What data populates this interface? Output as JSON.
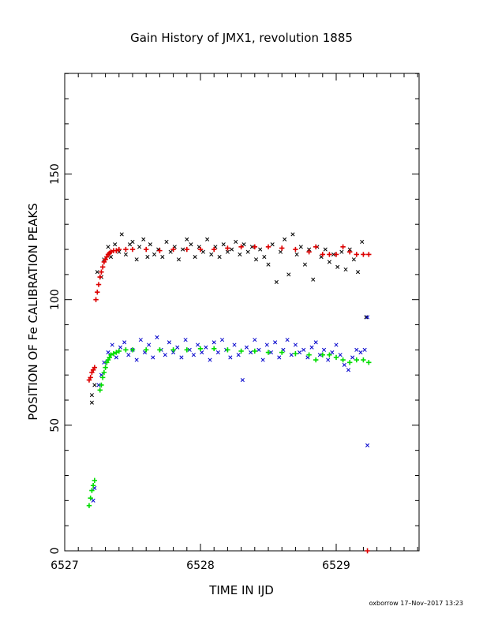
{
  "chart_data": {
    "type": "scatter",
    "title": "Gain History of JMX1, revolution 1885",
    "xlabel": "TIME IN IJD",
    "ylabel": "POSITION OF Fe CALIBRATION PEAKS",
    "xlim": [
      6527.0,
      6529.6
    ],
    "ylim": [
      0,
      190
    ],
    "xticks": [
      6527,
      6528,
      6529
    ],
    "xtick_labels": [
      "6527",
      "6528",
      "6529"
    ],
    "yticks": [
      0,
      50,
      100,
      150
    ],
    "ytick_labels": [
      "0",
      "50",
      "100",
      "150"
    ],
    "grid": false,
    "footer": "oxborrow 17–Nov–2017 13:23",
    "series": [
      {
        "marker": "x",
        "color": "#000000",
        "x": [
          6527.2,
          6527.2,
          6527.22,
          6527.24,
          6527.27,
          6527.29,
          6527.32,
          6527.34,
          6527.37,
          6527.4,
          6527.42,
          6527.45,
          6527.48,
          6527.5,
          6527.53,
          6527.55,
          6527.58,
          6527.61,
          6527.63,
          6527.66,
          6527.69,
          6527.72,
          6527.75,
          6527.78,
          6527.81,
          6527.84,
          6527.87,
          6527.9,
          6527.93,
          6527.96,
          6527.99,
          6528.02,
          6528.05,
          6528.08,
          6528.11,
          6528.14,
          6528.17,
          6528.2,
          6528.23,
          6528.26,
          6528.29,
          6528.32,
          6528.35,
          6528.38,
          6528.41,
          6528.44,
          6528.47,
          6528.5,
          6528.53,
          6528.56,
          6528.59,
          6528.62,
          6528.65,
          6528.68,
          6528.71,
          6528.74,
          6528.77,
          6528.8,
          6528.83,
          6528.86,
          6528.89,
          6528.92,
          6528.95,
          6528.98,
          6529.01,
          6529.04,
          6529.07,
          6529.1,
          6529.13,
          6529.16,
          6529.19,
          6529.22
        ],
        "y": [
          59,
          62,
          66,
          111,
          109,
          116,
          121,
          117,
          122,
          119,
          126,
          118,
          122,
          123,
          116,
          121,
          124,
          117,
          122,
          118,
          120,
          117,
          123,
          119,
          121,
          116,
          120,
          124,
          122,
          117,
          121,
          119,
          124,
          118,
          121,
          117,
          122,
          119,
          120,
          123,
          118,
          122,
          119,
          121,
          116,
          120,
          117,
          114,
          122,
          107,
          119,
          124,
          110,
          126,
          118,
          121,
          114,
          120,
          108,
          121,
          117,
          120,
          115,
          118,
          113,
          119,
          112,
          120,
          116,
          111,
          123,
          93
        ]
      },
      {
        "marker": "+",
        "color": "#dd0000",
        "x": [
          6527.18,
          6527.19,
          6527.2,
          6527.21,
          6527.22,
          6527.23,
          6527.24,
          6527.25,
          6527.26,
          6527.27,
          6527.28,
          6527.29,
          6527.3,
          6527.31,
          6527.32,
          6527.33,
          6527.34,
          6527.36,
          6527.38,
          6527.4,
          6527.45,
          6527.5,
          6527.6,
          6527.7,
          6527.8,
          6527.9,
          6528.0,
          6528.1,
          6528.2,
          6528.3,
          6528.4,
          6528.5,
          6528.6,
          6528.7,
          6528.8,
          6528.85,
          6528.9,
          6528.95,
          6529.0,
          6529.05,
          6529.1,
          6529.15,
          6529.2,
          6529.24,
          6529.23
        ],
        "y": [
          68,
          69,
          71,
          72,
          73,
          100,
          103,
          106,
          109,
          111,
          113,
          115,
          116,
          117,
          118,
          118.5,
          119,
          119.5,
          119.5,
          120,
          120,
          120,
          120,
          119.5,
          120,
          120,
          120,
          120,
          120.5,
          121,
          121,
          121,
          120.5,
          120,
          119,
          121,
          118,
          118,
          118,
          121,
          119,
          118,
          118,
          118,
          0
        ]
      },
      {
        "marker": "x",
        "color": "#0000cc",
        "x": [
          6527.21,
          6527.22,
          6527.25,
          6527.27,
          6527.29,
          6527.32,
          6527.35,
          6527.38,
          6527.41,
          6527.44,
          6527.47,
          6527.5,
          6527.53,
          6527.56,
          6527.59,
          6527.62,
          6527.65,
          6527.68,
          6527.71,
          6527.74,
          6527.77,
          6527.8,
          6527.83,
          6527.86,
          6527.89,
          6527.92,
          6527.95,
          6527.98,
          6528.01,
          6528.04,
          6528.07,
          6528.1,
          6528.13,
          6528.16,
          6528.19,
          6528.22,
          6528.25,
          6528.28,
          6528.31,
          6528.34,
          6528.37,
          6528.4,
          6528.43,
          6528.46,
          6528.49,
          6528.52,
          6528.55,
          6528.58,
          6528.61,
          6528.64,
          6528.67,
          6528.7,
          6528.73,
          6528.76,
          6528.79,
          6528.82,
          6528.85,
          6528.88,
          6528.91,
          6528.94,
          6528.97,
          6529.0,
          6529.03,
          6529.06,
          6529.09,
          6529.12,
          6529.15,
          6529.18,
          6529.21,
          6529.23,
          6529.23
        ],
        "y": [
          20,
          25,
          66,
          70,
          75,
          79,
          82,
          77,
          81,
          83,
          78,
          80,
          76,
          84,
          79,
          82,
          77,
          85,
          80,
          78,
          83,
          79,
          81,
          77,
          84,
          80,
          78,
          82,
          79,
          81,
          76,
          83,
          79,
          84,
          80,
          77,
          82,
          78,
          68,
          81,
          79,
          84,
          80,
          76,
          82,
          79,
          83,
          77,
          80,
          84,
          78,
          82,
          79,
          80,
          77,
          81,
          83,
          78,
          80,
          76,
          79,
          82,
          78,
          74,
          72,
          77,
          80,
          79,
          80,
          42,
          93
        ]
      },
      {
        "marker": "+",
        "color": "#00dd00",
        "x": [
          6527.18,
          6527.19,
          6527.2,
          6527.21,
          6527.22,
          6527.26,
          6527.27,
          6527.28,
          6527.29,
          6527.3,
          6527.31,
          6527.32,
          6527.33,
          6527.34,
          6527.36,
          6527.38,
          6527.4,
          6527.45,
          6527.5,
          6527.6,
          6527.7,
          6527.8,
          6527.9,
          6528.0,
          6528.1,
          6528.2,
          6528.3,
          6528.4,
          6528.5,
          6528.6,
          6528.7,
          6528.8,
          6528.85,
          6528.9,
          6528.95,
          6529.0,
          6529.05,
          6529.1,
          6529.15,
          6529.2,
          6529.24
        ],
        "y": [
          18,
          21,
          24,
          26,
          28,
          64,
          66,
          69,
          71,
          73,
          75,
          76,
          77,
          78,
          78.5,
          79,
          79.5,
          80,
          80,
          80,
          80,
          80,
          80,
          80.5,
          80.5,
          80,
          79.5,
          79.5,
          79,
          79,
          78.5,
          78,
          76,
          78,
          78,
          77,
          76,
          75,
          76,
          76,
          75
        ]
      }
    ]
  }
}
